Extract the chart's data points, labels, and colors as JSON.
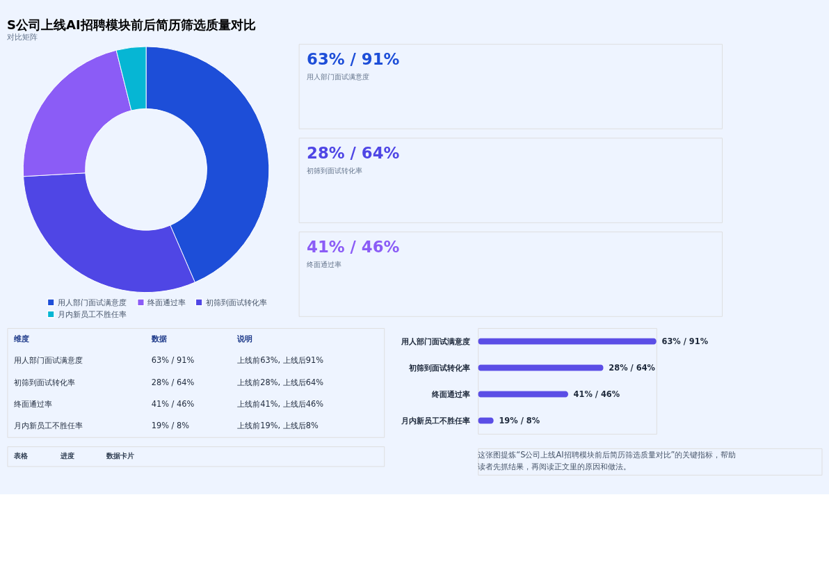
{
  "chart_data": [
    {
      "type": "donut",
      "title": "S公司上线AI招聘模块前后简历筛选质量对比",
      "subtitle": "对比矩阵",
      "categories": [
        "用人部门面试满意度",
        "初筛到面试转化率",
        "终面通过率",
        "月内新员工不胜任率"
      ],
      "values": [
        43.5,
        30.6,
        22.0,
        3.9
      ],
      "colors": [
        "#1d4ed8",
        "#4f46e5",
        "#8b5cf6",
        "#06b6d4"
      ],
      "legend": "bottom"
    },
    {
      "type": "other",
      "annotations": [
        "63% / 91%",
        "用人部门面试满意度",
        "28% / 64%",
        "初筛到面试转化率",
        "41% / 46%",
        "终面通过率"
      ]
    },
    {
      "type": "other",
      "annotations": [
        "维度",
        "数据",
        "说明",
        "用人部门面试满意度",
        "63% / 91%",
        "上线前63%, 上线后91%",
        "初筛到面试转化率",
        "28% / 64%",
        "上线前28%, 上线后64%",
        "终面通过率",
        "41% / 46%",
        "上线前41%, 上线后46%",
        "月内新员工不胜任率",
        "19% / 8%",
        "上线前19%, 上线后8%"
      ]
    },
    {
      "type": "other",
      "annotations": [
        "表格",
        "进度",
        "数据卡片"
      ]
    },
    {
      "type": "bar",
      "orientation": "horizontal",
      "tick_labels": "y",
      "categories": [
        "用人部门面试满意度",
        "初筛到面试转化率",
        "终面通过率",
        "月内新员工不胜任率"
      ],
      "values": [
        91,
        64,
        46,
        8
      ],
      "color": "#5b4ee6",
      "value_labels": [
        "63% / 91%",
        "28% / 64%",
        "41% / 46%",
        "19% / 8%"
      ],
      "annotations": [
        "这张图提炼“S公司上线AI招聘模块前后简历筛选质量对比”的关键指标，帮助读者先抓结果，再阅读正文里的原因和做法。"
      ]
    }
  ]
}
